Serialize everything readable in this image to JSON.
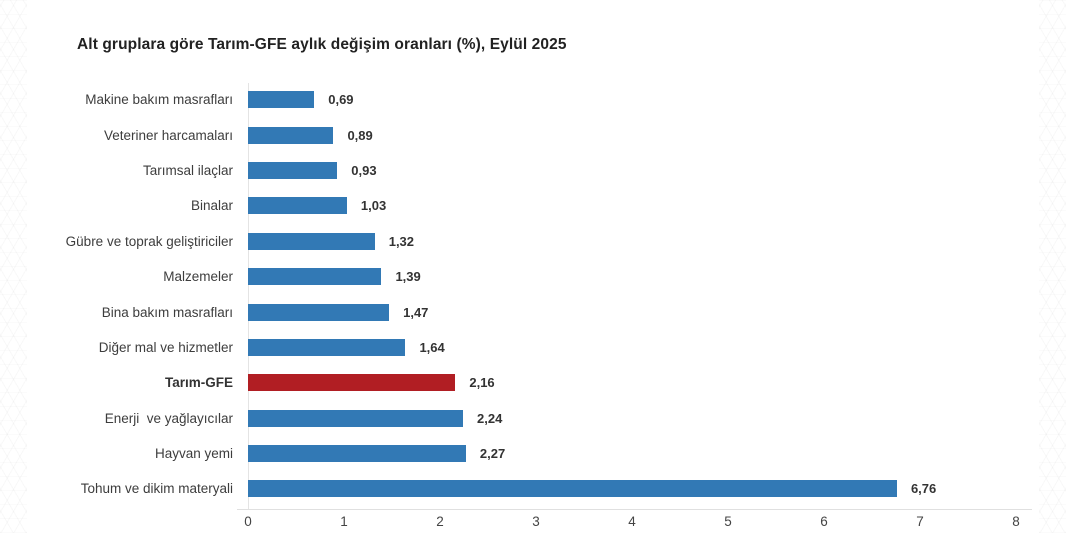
{
  "chart_data": {
    "type": "bar",
    "orientation": "horizontal",
    "title": "Alt gruplara göre Tarım-GFE aylık değişim oranları (%), Eylül 2025",
    "categories": [
      "Makine bakım masrafları",
      "Veteriner harcamaları",
      "Tarımsal ilaçlar",
      "Binalar",
      "Gübre ve toprak geliştiriciler",
      "Malzemeler",
      "Bina bakım masrafları",
      "Diğer mal ve hizmetler",
      "Tarım-GFE",
      "Enerji  ve yağlayıcılar",
      "Hayvan yemi",
      "Tohum ve dikim materyali"
    ],
    "values": [
      0.69,
      0.89,
      0.93,
      1.03,
      1.32,
      1.39,
      1.47,
      1.64,
      2.16,
      2.24,
      2.27,
      6.76
    ],
    "value_labels": [
      "0,69",
      "0,89",
      "0,93",
      "1,03",
      "1,32",
      "1,39",
      "1,47",
      "1,64",
      "2,16",
      "2,24",
      "2,27",
      "6,76"
    ],
    "highlight_index": 8,
    "highlight_category": "Tarım-GFE",
    "colors": {
      "bar": "#3279b5",
      "highlight_bar": "#b11e23"
    },
    "xlim": [
      0,
      8
    ],
    "x_ticks": [
      "0",
      "1",
      "2",
      "3",
      "4",
      "5",
      "6",
      "7",
      "8"
    ],
    "grid": false,
    "legend": "none"
  }
}
